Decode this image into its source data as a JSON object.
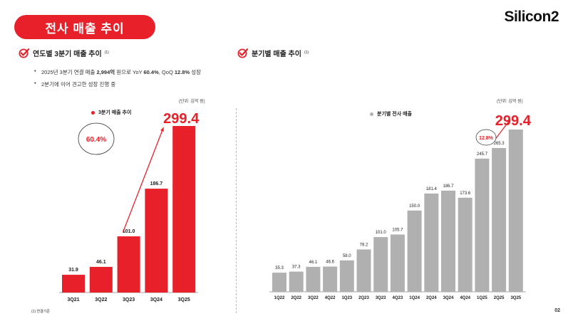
{
  "header": {
    "title": "전사 매출 추이",
    "logo_text": "Silicon2"
  },
  "left_section": {
    "heading": "연도별 3분기 매출 추이",
    "heading_sup": "(1)",
    "bullets": [
      {
        "parts": [
          {
            "text": "2025년 3분기 연결 매출 ",
            "bold": false
          },
          {
            "text": "2,994억",
            "bold": true
          },
          {
            "text": " 원으로 YoY ",
            "bold": false
          },
          {
            "text": "60.4%",
            "bold": true
          },
          {
            "text": ", QoQ ",
            "bold": false
          },
          {
            "text": "12.8%",
            "bold": true
          },
          {
            "text": " 성장",
            "bold": false
          }
        ]
      },
      {
        "parts": [
          {
            "text": "2분기에 이어 견고한 성장 진행 중",
            "bold": false
          }
        ]
      }
    ],
    "unit": "(단위: 십억 원)",
    "legend": "3분기 매출 추이",
    "growth_badge": "60.4%"
  },
  "right_section": {
    "heading": "분기별 매출 추이",
    "heading_sup": "(1)",
    "unit": "(단위: 십억 원)",
    "legend": "분기별 전사 매출",
    "growth_badge": "12.8%"
  },
  "footnote": "(1) 연결기준",
  "page_number": "02",
  "colors": {
    "brand_red": "#e8202a",
    "bar_gray": "#b0b0b0",
    "text_dark": "#222222"
  },
  "chart_data": [
    {
      "type": "bar",
      "categories": [
        "3Q21",
        "3Q22",
        "3Q23",
        "3Q24",
        "3Q25"
      ],
      "values": [
        31.9,
        46.1,
        101.0,
        186.7,
        299.4
      ],
      "value_labels": [
        "31.9",
        "46.1",
        "101.0",
        "186.7",
        "299.4"
      ],
      "series": [
        {
          "name": "3분기 매출 추이",
          "values": [
            31.9,
            46.1,
            101.0,
            186.7,
            299.4
          ]
        }
      ],
      "highlight_index": 4,
      "ylim": [
        0,
        299.4
      ],
      "annotation": "60.4%",
      "grid": false
    },
    {
      "type": "bar",
      "categories": [
        "1Q22",
        "2Q22",
        "3Q22",
        "4Q22",
        "1Q23",
        "2Q23",
        "3Q23",
        "4Q23",
        "1Q24",
        "2Q24",
        "3Q24",
        "4Q24",
        "1Q25",
        "2Q25",
        "3Q25"
      ],
      "values": [
        35.3,
        37.3,
        46.1,
        46.6,
        58.0,
        78.2,
        101.0,
        105.7,
        150.0,
        181.4,
        186.7,
        173.6,
        245.7,
        265.3,
        299.4
      ],
      "value_labels": [
        "35.3",
        "37.3",
        "46.1",
        "46.6",
        "58.0",
        "78.2",
        "101.0",
        "105.7",
        "150.0",
        "181.4",
        "186.7",
        "173.6",
        "245.7",
        "265.3",
        "299.4"
      ],
      "series": [
        {
          "name": "분기별 전사 매출",
          "values": [
            35.3,
            37.3,
            46.1,
            46.6,
            58.0,
            78.2,
            101.0,
            105.7,
            150.0,
            181.4,
            186.7,
            173.6,
            245.7,
            265.3,
            299.4
          ]
        }
      ],
      "highlight_index": 14,
      "ylim": [
        0,
        299.4
      ],
      "annotation": "12.8%",
      "grid": false
    }
  ]
}
